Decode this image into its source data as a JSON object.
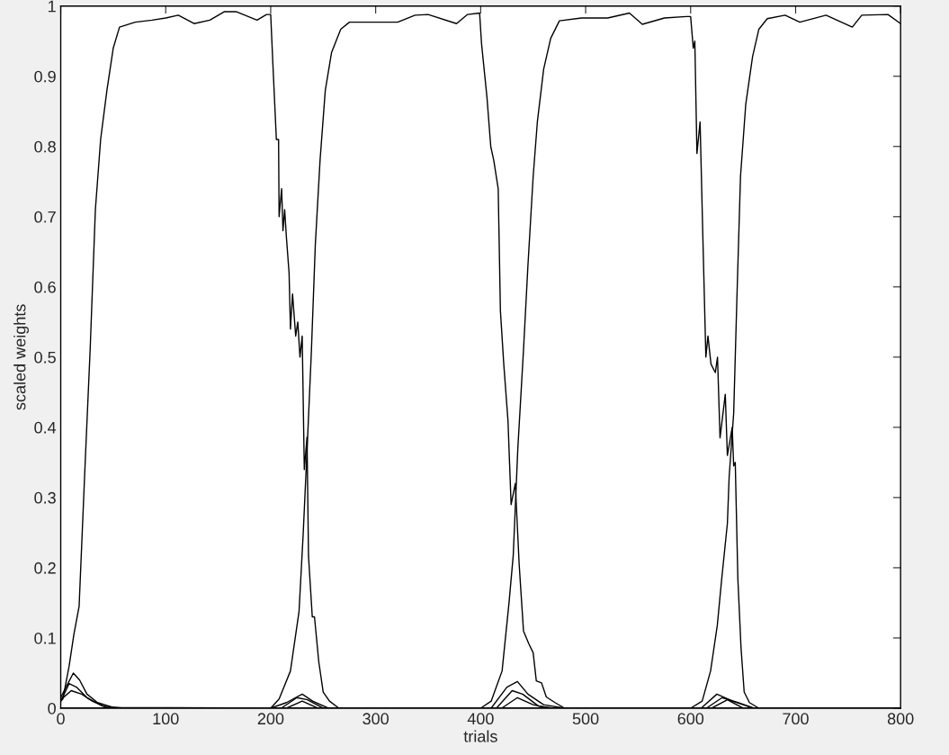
{
  "chart_data": {
    "type": "line",
    "xlabel": "trials",
    "ylabel": "scaled weights",
    "xlim": [
      0,
      800
    ],
    "ylim": [
      0,
      1
    ],
    "xticks": [
      0,
      100,
      200,
      300,
      400,
      500,
      600,
      700,
      800
    ],
    "yticks": [
      0,
      0.1,
      0.2,
      0.3,
      0.4,
      0.5,
      0.6,
      0.7,
      0.8,
      0.9,
      1
    ],
    "grid": false,
    "legend": false,
    "line_style": "solid",
    "marker": "none",
    "series": [
      {
        "color": "#000000",
        "x": [
          0,
          2,
          8,
          12.5,
          17.5,
          23,
          28,
          33,
          38,
          44,
          50,
          56,
          71,
          87,
          100,
          112,
          127,
          142,
          156,
          167,
          187,
          196,
          200,
          202,
          205.4,
          207.5,
          208,
          210.4,
          211.7,
          213.3,
          215,
          217.5,
          218.8,
          220.8,
          223.8,
          225.8,
          227.9,
          230,
          232,
          234.6,
          236,
          239.6,
          241.7,
          245.8,
          250,
          256,
          265,
          400,
          800
        ],
        "values": [
          0.01,
          0.013,
          0.06,
          0.105,
          0.145,
          0.34,
          0.51,
          0.71,
          0.81,
          0.88,
          0.94,
          0.97,
          0.977,
          0.98,
          0.983,
          0.987,
          0.975,
          0.98,
          0.992,
          0.992,
          0.98,
          0.988,
          0.988,
          0.92,
          0.81,
          0.81,
          0.7,
          0.74,
          0.68,
          0.71,
          0.67,
          0.62,
          0.54,
          0.59,
          0.53,
          0.55,
          0.5,
          0.53,
          0.34,
          0.386,
          0.217,
          0.13,
          0.13,
          0.066,
          0.023,
          0.01,
          0,
          0,
          0
        ]
      },
      {
        "color": "#000000",
        "x": [
          0,
          200,
          208,
          218.8,
          227,
          231,
          235,
          238.8,
          242.5,
          247,
          252,
          258,
          266.7,
          275,
          300,
          321,
          337.5,
          350,
          377,
          387.5,
          399,
          400.8,
          406,
          409.6,
          412.5,
          416.7,
          418.8,
          422,
          426,
          429,
          433,
          436.7,
          440.8,
          445.8,
          450,
          453,
          458,
          462.5,
          470.8,
          480,
          800
        ],
        "values": [
          0,
          0,
          0.013,
          0.053,
          0.138,
          0.25,
          0.38,
          0.51,
          0.66,
          0.78,
          0.88,
          0.934,
          0.967,
          0.977,
          0.977,
          0.977,
          0.987,
          0.988,
          0.975,
          0.988,
          0.99,
          0.947,
          0.87,
          0.8,
          0.78,
          0.74,
          0.566,
          0.49,
          0.41,
          0.29,
          0.32,
          0.204,
          0.11,
          0.092,
          0.079,
          0.039,
          0.036,
          0.016,
          0.008,
          0,
          0
        ]
      },
      {
        "color": "#000000",
        "x": [
          0,
          400,
          410,
          420.4,
          427,
          431,
          435.4,
          440.8,
          445,
          450,
          454,
          460,
          466.7,
          475,
          496,
          512.5,
          521,
          541.7,
          554,
          575,
          596,
          600,
          602.5,
          604,
          606,
          609,
          611.5,
          614.5,
          616.5,
          619.4,
          623.5,
          625.6,
          628,
          633,
          635,
          639.6,
          641,
          642.5,
          645,
          648,
          651,
          656,
          665,
          800
        ],
        "values": [
          0,
          0,
          0.01,
          0.053,
          0.15,
          0.217,
          0.37,
          0.51,
          0.63,
          0.757,
          0.835,
          0.91,
          0.954,
          0.979,
          0.983,
          0.983,
          0.983,
          0.99,
          0.974,
          0.983,
          0.985,
          0.985,
          0.94,
          0.95,
          0.79,
          0.835,
          0.68,
          0.5,
          0.53,
          0.49,
          0.478,
          0.5,
          0.385,
          0.447,
          0.36,
          0.4,
          0.345,
          0.35,
          0.184,
          0.086,
          0.023,
          0.008,
          0,
          0
        ]
      },
      {
        "color": "#000000",
        "x": [
          0,
          600,
          611,
          619,
          625.4,
          629.6,
          635,
          636.7,
          641,
          644,
          647.5,
          652.5,
          659,
          665,
          673,
          690,
          704,
          729,
          754,
          763,
          788,
          800
        ],
        "values": [
          0,
          0,
          0.01,
          0.053,
          0.118,
          0.184,
          0.263,
          0.33,
          0.42,
          0.58,
          0.757,
          0.86,
          0.928,
          0.967,
          0.982,
          0.987,
          0.977,
          0.987,
          0.97,
          0.987,
          0.988,
          0.975
        ]
      },
      {
        "color": "#000000",
        "x": [
          0,
          5,
          12,
          18,
          25,
          35,
          50,
          200,
          215,
          230,
          240,
          255,
          410,
          425,
          435,
          445,
          460,
          480,
          610,
          625,
          640,
          660,
          800
        ],
        "values": [
          0.015,
          0.03,
          0.05,
          0.04,
          0.02,
          0.008,
          0.001,
          0,
          0.008,
          0.02,
          0.01,
          0,
          0,
          0.03,
          0.038,
          0.02,
          0.005,
          0,
          0,
          0.02,
          0.01,
          0,
          0
        ]
      },
      {
        "color": "#000000",
        "x": [
          0,
          8,
          15,
          25,
          40,
          60,
          210,
          225,
          235,
          250,
          415,
          430,
          440,
          455,
          470,
          615,
          630,
          645,
          660,
          800
        ],
        "values": [
          0.01,
          0.035,
          0.03,
          0.015,
          0.003,
          0,
          0,
          0.015,
          0.012,
          0,
          0,
          0.025,
          0.02,
          0.003,
          0,
          0,
          0.015,
          0.008,
          0,
          0
        ]
      },
      {
        "color": "#000000",
        "x": [
          0,
          10,
          20,
          30,
          45,
          215,
          230,
          245,
          420,
          435,
          450,
          465,
          620,
          635,
          650,
          800
        ],
        "values": [
          0.012,
          0.025,
          0.02,
          0.01,
          0,
          0,
          0.01,
          0,
          0,
          0.015,
          0.005,
          0,
          0,
          0.012,
          0,
          0
        ]
      }
    ]
  }
}
